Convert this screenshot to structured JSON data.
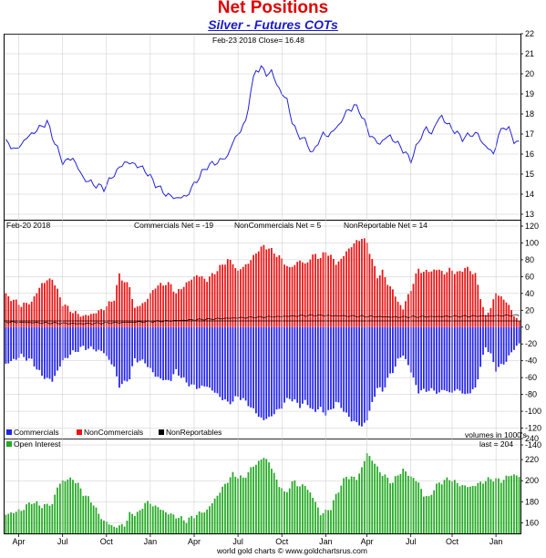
{
  "header": {
    "title": "Net Positions",
    "subtitle": "Silver - Futures COTs"
  },
  "footer": {
    "credit": "world gold charts © www.goldchartsrus.com"
  },
  "chart_data": [
    {
      "type": "line",
      "panel": "price",
      "label": "Feb-23  2018   Close= 16.48",
      "ylim": [
        13,
        22
      ],
      "y_ticks": [
        13,
        14,
        15,
        16,
        17,
        18,
        19,
        20,
        21,
        22
      ],
      "color": "#2222dd",
      "anchors": [
        [
          0,
          16.6
        ],
        [
          4,
          16.2
        ],
        [
          8,
          16.8
        ],
        [
          12,
          17.2
        ],
        [
          16,
          17.6
        ],
        [
          18,
          16.9
        ],
        [
          22,
          15.6
        ],
        [
          26,
          15.8
        ],
        [
          30,
          14.8
        ],
        [
          34,
          14.5
        ],
        [
          38,
          14.3
        ],
        [
          42,
          15.0
        ],
        [
          46,
          15.6
        ],
        [
          50,
          15.5
        ],
        [
          54,
          15.2
        ],
        [
          58,
          14.5
        ],
        [
          62,
          14.0
        ],
        [
          66,
          13.8
        ],
        [
          70,
          13.9
        ],
        [
          74,
          14.7
        ],
        [
          78,
          15.4
        ],
        [
          82,
          15.6
        ],
        [
          86,
          15.9
        ],
        [
          88,
          16.6
        ],
        [
          91,
          17.2
        ],
        [
          93,
          17.6
        ],
        [
          95,
          19.2
        ],
        [
          97,
          20.2
        ],
        [
          99,
          20.3
        ],
        [
          101,
          20.0
        ],
        [
          103,
          20.1
        ],
        [
          105,
          19.5
        ],
        [
          107,
          19.0
        ],
        [
          109,
          18.7
        ],
        [
          111,
          17.6
        ],
        [
          113,
          17.0
        ],
        [
          115,
          16.8
        ],
        [
          117,
          16.5
        ],
        [
          119,
          16.0
        ],
        [
          121,
          16.6
        ],
        [
          123,
          17.0
        ],
        [
          125,
          16.9
        ],
        [
          127,
          17.2
        ],
        [
          129,
          17.4
        ],
        [
          131,
          17.9
        ],
        [
          133,
          18.2
        ],
        [
          135,
          18.4
        ],
        [
          137,
          18.2
        ],
        [
          139,
          17.6
        ],
        [
          141,
          17.0
        ],
        [
          143,
          16.7
        ],
        [
          145,
          16.5
        ],
        [
          147,
          16.8
        ],
        [
          149,
          16.9
        ],
        [
          151,
          16.6
        ],
        [
          153,
          16.4
        ],
        [
          155,
          16.0
        ],
        [
          157,
          15.7
        ],
        [
          159,
          16.3
        ],
        [
          161,
          16.9
        ],
        [
          163,
          17.3
        ],
        [
          165,
          17.0
        ],
        [
          167,
          17.6
        ],
        [
          169,
          17.9
        ],
        [
          171,
          17.5
        ],
        [
          173,
          17.3
        ],
        [
          175,
          17.0
        ],
        [
          177,
          16.8
        ],
        [
          179,
          16.9
        ],
        [
          181,
          17.0
        ],
        [
          183,
          17.0
        ],
        [
          185,
          16.5
        ],
        [
          187,
          16.3
        ],
        [
          189,
          16.0
        ],
        [
          191,
          16.9
        ],
        [
          193,
          17.4
        ],
        [
          195,
          17.2
        ],
        [
          197,
          16.7
        ],
        [
          199,
          16.5
        ]
      ]
    },
    {
      "type": "bar",
      "panel": "cot",
      "label": "Feb-20  2018",
      "annotations": [
        "Commercials Net = -19",
        "NonCommercials Net = 5",
        "NonReportable Net = 14"
      ],
      "units_note": "volumes in 1000's",
      "ylim": [
        -140,
        120
      ],
      "y_ticks": [
        -140,
        -120,
        -100,
        -80,
        -60,
        -40,
        -20,
        0,
        20,
        40,
        60,
        80,
        100,
        120
      ],
      "legend": [
        "Commercials",
        "NonCommercials",
        "NonReportables"
      ],
      "colors": {
        "commercials": "#2222ee",
        "noncommercials": "#ee1111",
        "nonreportables": "#000000"
      },
      "noncommercials_anchors": [
        [
          0,
          38
        ],
        [
          6,
          26
        ],
        [
          10,
          30
        ],
        [
          14,
          52
        ],
        [
          18,
          58
        ],
        [
          22,
          28
        ],
        [
          26,
          18
        ],
        [
          30,
          13
        ],
        [
          34,
          16
        ],
        [
          38,
          22
        ],
        [
          42,
          34
        ],
        [
          44,
          62
        ],
        [
          46,
          54
        ],
        [
          48,
          48
        ],
        [
          50,
          22
        ],
        [
          54,
          30
        ],
        [
          58,
          48
        ],
        [
          62,
          52
        ],
        [
          64,
          50
        ],
        [
          66,
          40
        ],
        [
          70,
          52
        ],
        [
          74,
          62
        ],
        [
          78,
          56
        ],
        [
          82,
          68
        ],
        [
          86,
          80
        ],
        [
          88,
          76
        ],
        [
          90,
          66
        ],
        [
          92,
          72
        ],
        [
          94,
          76
        ],
        [
          96,
          84
        ],
        [
          98,
          92
        ],
        [
          100,
          96
        ],
        [
          102,
          94
        ],
        [
          104,
          88
        ],
        [
          106,
          84
        ],
        [
          108,
          76
        ],
        [
          110,
          70
        ],
        [
          112,
          74
        ],
        [
          114,
          80
        ],
        [
          116,
          74
        ],
        [
          118,
          82
        ],
        [
          120,
          86
        ],
        [
          122,
          82
        ],
        [
          124,
          90
        ],
        [
          126,
          84
        ],
        [
          128,
          76
        ],
        [
          130,
          80
        ],
        [
          132,
          90
        ],
        [
          134,
          96
        ],
        [
          136,
          102
        ],
        [
          138,
          106
        ],
        [
          140,
          100
        ],
        [
          142,
          80
        ],
        [
          144,
          60
        ],
        [
          146,
          66
        ],
        [
          148,
          52
        ],
        [
          150,
          44
        ],
        [
          152,
          30
        ],
        [
          154,
          22
        ],
        [
          156,
          38
        ],
        [
          158,
          52
        ],
        [
          160,
          70
        ],
        [
          162,
          64
        ],
        [
          164,
          68
        ],
        [
          166,
          66
        ],
        [
          168,
          70
        ],
        [
          170,
          62
        ],
        [
          172,
          70
        ],
        [
          174,
          64
        ],
        [
          176,
          66
        ],
        [
          178,
          70
        ],
        [
          180,
          68
        ],
        [
          182,
          62
        ],
        [
          184,
          36
        ],
        [
          186,
          12
        ],
        [
          188,
          24
        ],
        [
          190,
          40
        ],
        [
          192,
          36
        ],
        [
          194,
          30
        ],
        [
          196,
          20
        ],
        [
          199,
          5
        ]
      ],
      "commercials_anchors": [
        [
          0,
          -44
        ],
        [
          6,
          -34
        ],
        [
          10,
          -40
        ],
        [
          14,
          -58
        ],
        [
          18,
          -64
        ],
        [
          22,
          -40
        ],
        [
          26,
          -30
        ],
        [
          30,
          -24
        ],
        [
          34,
          -26
        ],
        [
          38,
          -30
        ],
        [
          42,
          -48
        ],
        [
          44,
          -70
        ],
        [
          46,
          -66
        ],
        [
          48,
          -60
        ],
        [
          50,
          -38
        ],
        [
          54,
          -42
        ],
        [
          58,
          -58
        ],
        [
          62,
          -64
        ],
        [
          64,
          -62
        ],
        [
          66,
          -52
        ],
        [
          70,
          -66
        ],
        [
          74,
          -72
        ],
        [
          78,
          -70
        ],
        [
          82,
          -80
        ],
        [
          86,
          -90
        ],
        [
          88,
          -88
        ],
        [
          90,
          -82
        ],
        [
          92,
          -86
        ],
        [
          94,
          -92
        ],
        [
          96,
          -98
        ],
        [
          98,
          -106
        ],
        [
          100,
          -110
        ],
        [
          102,
          -108
        ],
        [
          104,
          -102
        ],
        [
          106,
          -98
        ],
        [
          108,
          -90
        ],
        [
          110,
          -84
        ],
        [
          112,
          -88
        ],
        [
          114,
          -94
        ],
        [
          116,
          -88
        ],
        [
          118,
          -96
        ],
        [
          120,
          -100
        ],
        [
          122,
          -96
        ],
        [
          124,
          -104
        ],
        [
          126,
          -98
        ],
        [
          128,
          -90
        ],
        [
          130,
          -94
        ],
        [
          132,
          -104
        ],
        [
          134,
          -110
        ],
        [
          136,
          -114
        ],
        [
          138,
          -118
        ],
        [
          140,
          -110
        ],
        [
          142,
          -90
        ],
        [
          144,
          -72
        ],
        [
          146,
          -76
        ],
        [
          148,
          -62
        ],
        [
          150,
          -52
        ],
        [
          152,
          -40
        ],
        [
          154,
          -32
        ],
        [
          156,
          -46
        ],
        [
          158,
          -60
        ],
        [
          160,
          -78
        ],
        [
          162,
          -74
        ],
        [
          164,
          -76
        ],
        [
          166,
          -74
        ],
        [
          168,
          -80
        ],
        [
          170,
          -72
        ],
        [
          172,
          -80
        ],
        [
          174,
          -74
        ],
        [
          176,
          -76
        ],
        [
          178,
          -80
        ],
        [
          180,
          -78
        ],
        [
          182,
          -72
        ],
        [
          184,
          -48
        ],
        [
          186,
          -22
        ],
        [
          188,
          -34
        ],
        [
          190,
          -50
        ],
        [
          192,
          -46
        ],
        [
          194,
          -40
        ],
        [
          196,
          -30
        ],
        [
          199,
          -19
        ]
      ],
      "nonreportables_anchors": [
        [
          0,
          6
        ],
        [
          30,
          4
        ],
        [
          60,
          7
        ],
        [
          90,
          11
        ],
        [
          120,
          14
        ],
        [
          150,
          12
        ],
        [
          180,
          13
        ],
        [
          199,
          14
        ]
      ]
    },
    {
      "type": "bar",
      "panel": "open-interest",
      "label": "last = 204",
      "legend": [
        "Open Interest"
      ],
      "ylim": [
        150,
        240
      ],
      "y_ticks": [
        160,
        180,
        200,
        220,
        240
      ],
      "color": "#22aa22",
      "anchors": [
        [
          0,
          168
        ],
        [
          6,
          172
        ],
        [
          10,
          180
        ],
        [
          14,
          176
        ],
        [
          18,
          178
        ],
        [
          20,
          194
        ],
        [
          22,
          200
        ],
        [
          26,
          202
        ],
        [
          28,
          196
        ],
        [
          30,
          188
        ],
        [
          34,
          178
        ],
        [
          36,
          168
        ],
        [
          38,
          162
        ],
        [
          42,
          156
        ],
        [
          46,
          158
        ],
        [
          48,
          168
        ],
        [
          52,
          170
        ],
        [
          54,
          180
        ],
        [
          58,
          176
        ],
        [
          62,
          170
        ],
        [
          66,
          166
        ],
        [
          70,
          162
        ],
        [
          74,
          168
        ],
        [
          78,
          172
        ],
        [
          82,
          186
        ],
        [
          86,
          200
        ],
        [
          88,
          206
        ],
        [
          92,
          202
        ],
        [
          96,
          214
        ],
        [
          100,
          222
        ],
        [
          102,
          218
        ],
        [
          104,
          206
        ],
        [
          106,
          196
        ],
        [
          108,
          188
        ],
        [
          112,
          200
        ],
        [
          114,
          194
        ],
        [
          116,
          196
        ],
        [
          118,
          188
        ],
        [
          120,
          180
        ],
        [
          122,
          168
        ],
        [
          126,
          174
        ],
        [
          128,
          186
        ],
        [
          130,
          196
        ],
        [
          132,
          204
        ],
        [
          136,
          202
        ],
        [
          138,
          212
        ],
        [
          140,
          226
        ],
        [
          142,
          220
        ],
        [
          144,
          212
        ],
        [
          146,
          206
        ],
        [
          148,
          202
        ],
        [
          150,
          198
        ],
        [
          152,
          206
        ],
        [
          154,
          210
        ],
        [
          156,
          206
        ],
        [
          158,
          202
        ],
        [
          160,
          198
        ],
        [
          162,
          186
        ],
        [
          164,
          184
        ],
        [
          166,
          192
        ],
        [
          168,
          198
        ],
        [
          172,
          202
        ],
        [
          176,
          196
        ],
        [
          180,
          194
        ],
        [
          184,
          198
        ],
        [
          188,
          202
        ],
        [
          192,
          200
        ],
        [
          196,
          206
        ],
        [
          199,
          204
        ]
      ]
    }
  ],
  "x_axis": {
    "ticks": [
      {
        "label": "Apr",
        "index": 5
      },
      {
        "label": "Jul",
        "index": 22
      },
      {
        "label": "Oct",
        "index": 39
      },
      {
        "label": "Jan",
        "index": 56
      },
      {
        "label": "Apr",
        "index": 73
      },
      {
        "label": "Jul",
        "index": 90
      },
      {
        "label": "Oct",
        "index": 107
      },
      {
        "label": "Jan",
        "index": 124
      },
      {
        "label": "Apr",
        "index": 140
      },
      {
        "label": "Jul",
        "index": 157
      },
      {
        "label": "Oct",
        "index": 173
      },
      {
        "label": "Jan",
        "index": 190
      }
    ]
  }
}
